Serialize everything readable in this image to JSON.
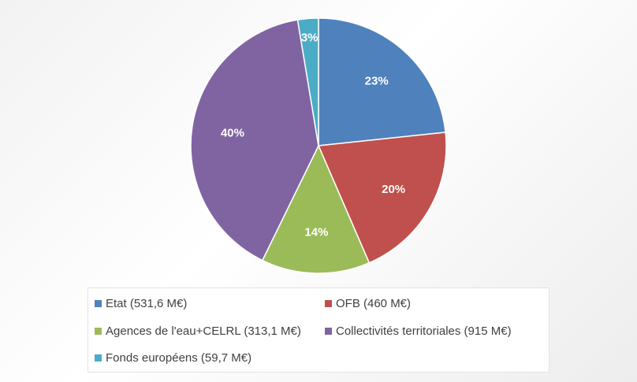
{
  "chart_data": {
    "type": "pie",
    "title": "",
    "legend_position": "bottom",
    "slices": [
      {
        "label": "Etat (531,6 M€)",
        "value": 531.6,
        "percent_label": "23%",
        "color": "#4f81bd"
      },
      {
        "label": "OFB (460 M€)",
        "value": 460,
        "percent_label": "20%",
        "color": "#c0504d"
      },
      {
        "label": "Agences de l'eau+CELRL (313,1 M€)",
        "value": 313.1,
        "percent_label": "14%",
        "color": "#9bbb59"
      },
      {
        "label": "Collectivités territoriales (915 M€)",
        "value": 915,
        "percent_label": "40%",
        "color": "#8064a2"
      },
      {
        "label": "Fonds européens (59,7 M€)",
        "value": 59.7,
        "percent_label": "3%",
        "color": "#4bacc6"
      }
    ]
  }
}
